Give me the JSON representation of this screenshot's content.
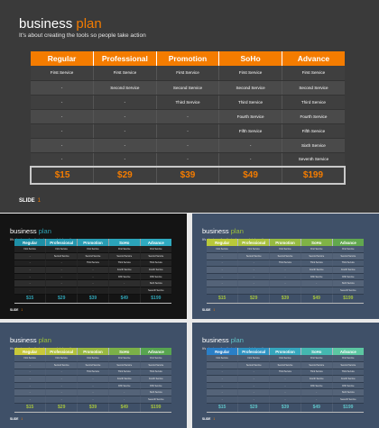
{
  "title": {
    "main": "business ",
    "accent": "plan"
  },
  "subtitle": "It's about creating the tools so people take action",
  "footer": {
    "label": "SLIDE",
    "number": "1"
  },
  "columns": [
    "Regular",
    "Professional",
    "Promotion",
    "SoHo",
    "Advance"
  ],
  "rows": [
    [
      "First Service",
      "First Service",
      "First Service",
      "First Service",
      "First Service"
    ],
    [
      "-",
      "Second Service",
      "Second Service",
      "Second Service",
      "Second Service"
    ],
    [
      "-",
      "-",
      "Third Service",
      "Third Service",
      "Third Service"
    ],
    [
      "-",
      "-",
      "-",
      "Fourth Service",
      "Fourth Service"
    ],
    [
      "-",
      "-",
      "-",
      "Fifth Service",
      "Fifth Service"
    ],
    [
      "-",
      "-",
      "-",
      "-",
      "Sixth Service"
    ],
    [
      "-",
      "-",
      "-",
      "-",
      "Seventh Service"
    ]
  ],
  "prices": [
    "$15",
    "$29",
    "$39",
    "$49",
    "$199"
  ],
  "slides": [
    {
      "id": "slide-main",
      "accent": "#f47c00",
      "header_colors": [
        "#f47c00",
        "#f47c00",
        "#f47c00",
        "#f47c00",
        "#f47c00"
      ],
      "price_color": "#f47c00"
    },
    {
      "id": "thumb-black",
      "accent": "#2fa3b5",
      "header_colors": [
        "#1e8fa6",
        "#2496ae",
        "#289db4",
        "#2ba4ba",
        "#2faac0"
      ],
      "price_color": "#2fa3b5"
    },
    {
      "id": "thumb-tr",
      "accent": "#9ec23a",
      "header_colors": [
        "#b9c93a",
        "#a9c23d",
        "#96bb41",
        "#80b346",
        "#62a84e"
      ],
      "price_color": "#a4c23d"
    },
    {
      "id": "thumb-bl",
      "accent": "#9ec23a",
      "header_colors": [
        "#c8c83a",
        "#b2c23d",
        "#98b941",
        "#7bb048",
        "#58a550"
      ],
      "price_color": "#a4c23d"
    },
    {
      "id": "thumb-br",
      "accent": "#5fc3c7",
      "header_colors": [
        "#2a7fc7",
        "#2e93c2",
        "#35a6bd",
        "#44b7b0",
        "#5cc7a2"
      ],
      "price_color": "#5fc3c7"
    }
  ]
}
